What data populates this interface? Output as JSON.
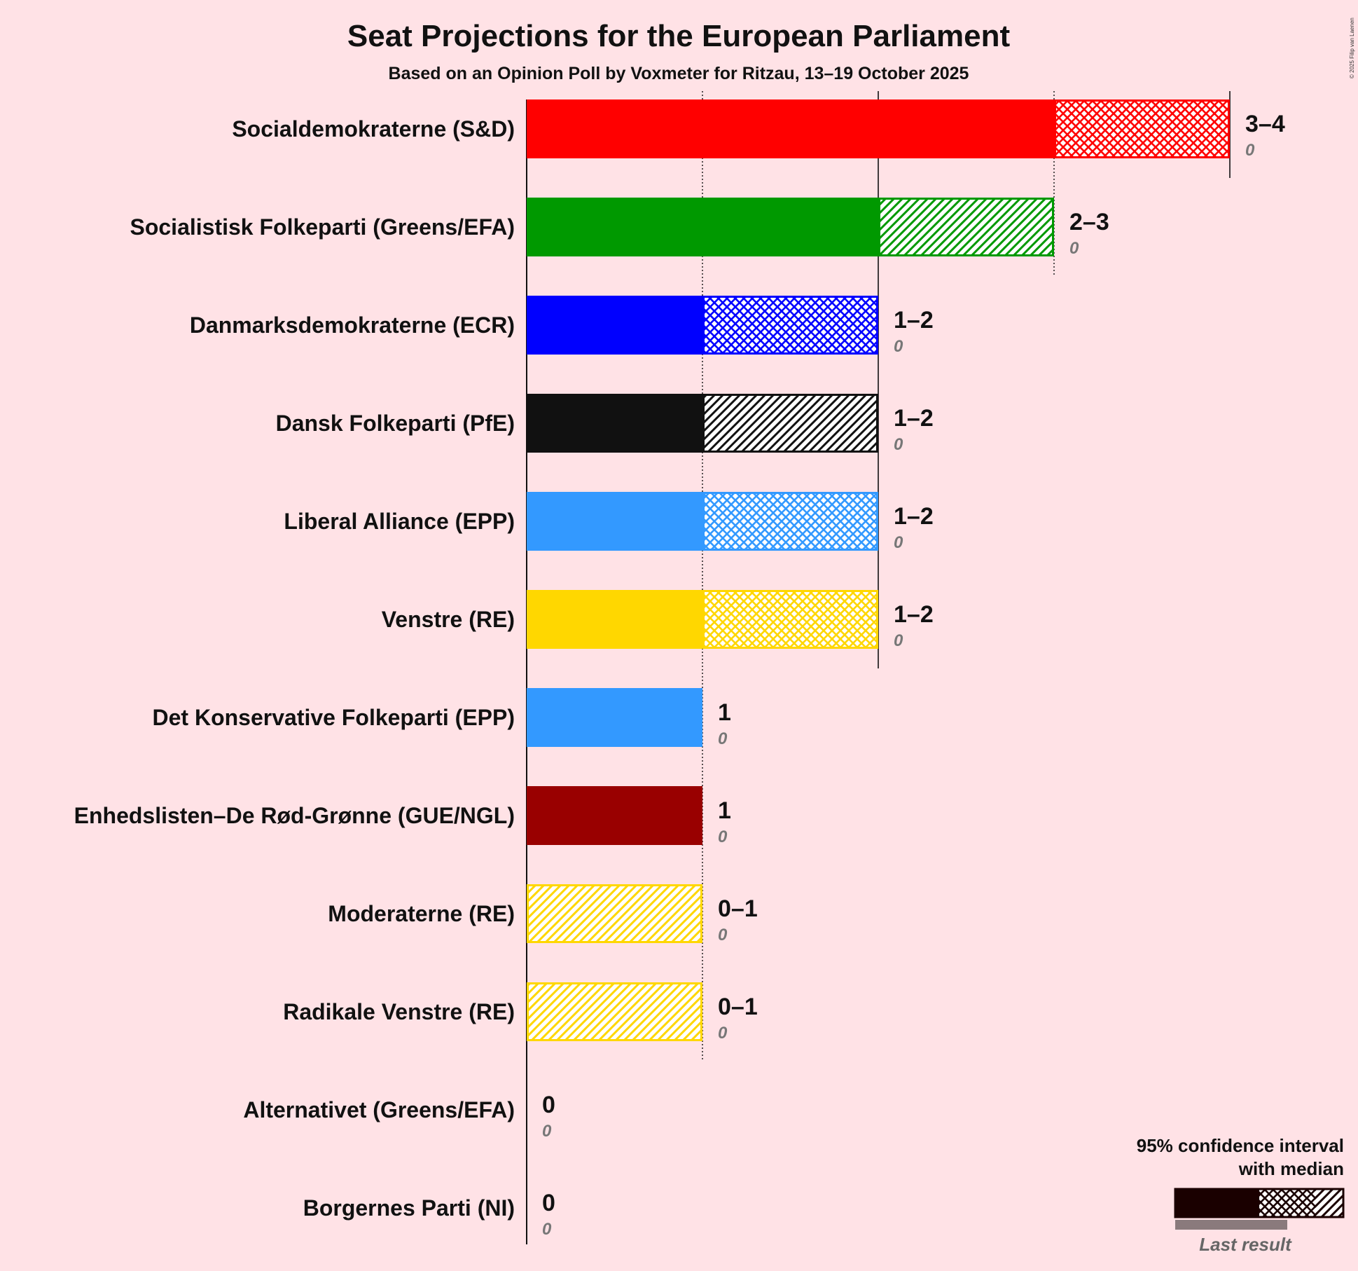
{
  "title": "Seat Projections for the European Parliament",
  "subtitle": "Based on an Opinion Poll by Voxmeter for Ritzau, 13–19 October 2025",
  "copyright": "© 2025 Filip van Laenen",
  "legend": {
    "line1": "95% confidence interval",
    "line2": "with median",
    "last_result": "Last result"
  },
  "chart_data": {
    "type": "bar",
    "orientation": "horizontal",
    "title": "Seat Projections for the European Parliament",
    "subtitle": "Based on an Opinion Poll by Voxmeter for Ritzau, 13–19 October 2025",
    "xlim": [
      0,
      4
    ],
    "categories": [
      "Socialdemokraterne (S&D)",
      "Socialistisk Folkeparti (Greens/EFA)",
      "Danmarksdemokraterne (ECR)",
      "Dansk Folkeparti (PfE)",
      "Liberal Alliance (EPP)",
      "Venstre (RE)",
      "Det Konservative Folkeparti (EPP)",
      "Enhedslisten–De Rød-Grønne (GUE/NGL)",
      "Moderaterne (RE)",
      "Radikale Venstre (RE)",
      "Alternativet (Greens/EFA)",
      "Borgernes Parti (NI)"
    ],
    "parties": [
      {
        "name": "Socialdemokraterne (S&D)",
        "low": 3,
        "median": 3,
        "high": 4,
        "range_label": "3–4",
        "last_result": 0,
        "last_label": "0",
        "color": "#ff0000",
        "inner_pattern": "cross",
        "outer_pattern": "cross"
      },
      {
        "name": "Socialistisk Folkeparti (Greens/EFA)",
        "low": 2,
        "median": 2,
        "high": 3,
        "range_label": "2–3",
        "last_result": 0,
        "last_label": "0",
        "color": "#009900",
        "inner_pattern": "diag",
        "outer_pattern": "diag"
      },
      {
        "name": "Danmarksdemokraterne (ECR)",
        "low": 1,
        "median": 1,
        "high": 2,
        "range_label": "1–2",
        "last_result": 0,
        "last_label": "0",
        "color": "#0000ff",
        "inner_pattern": "cross",
        "outer_pattern": "cross"
      },
      {
        "name": "Dansk Folkeparti (PfE)",
        "low": 1,
        "median": 1,
        "high": 2,
        "range_label": "1–2",
        "last_result": 0,
        "last_label": "0",
        "color": "#111111",
        "inner_pattern": "diag",
        "outer_pattern": "diag"
      },
      {
        "name": "Liberal Alliance (EPP)",
        "low": 1,
        "median": 1,
        "high": 2,
        "range_label": "1–2",
        "last_result": 0,
        "last_label": "0",
        "color": "#3399ff",
        "inner_pattern": "cross",
        "outer_pattern": "cross"
      },
      {
        "name": "Venstre (RE)",
        "low": 1,
        "median": 1,
        "high": 2,
        "range_label": "1–2",
        "last_result": 0,
        "last_label": "0",
        "color": "#ffd700",
        "inner_pattern": "cross",
        "outer_pattern": "cross"
      },
      {
        "name": "Det Konservative Folkeparti (EPP)",
        "low": 1,
        "median": 1,
        "high": 1,
        "range_label": "1",
        "last_result": 0,
        "last_label": "0",
        "color": "#3399ff",
        "inner_pattern": "none",
        "outer_pattern": "none"
      },
      {
        "name": "Enhedslisten–De Rød-Grønne (GUE/NGL)",
        "low": 1,
        "median": 1,
        "high": 1,
        "range_label": "1",
        "last_result": 0,
        "last_label": "0",
        "color": "#990000",
        "inner_pattern": "none",
        "outer_pattern": "none"
      },
      {
        "name": "Moderaterne (RE)",
        "low": 0,
        "median": 0,
        "high": 1,
        "range_label": "0–1",
        "last_result": 0,
        "last_label": "0",
        "color": "#ffd700",
        "inner_pattern": "diag",
        "outer_pattern": "diag"
      },
      {
        "name": "Radikale Venstre (RE)",
        "low": 0,
        "median": 0,
        "high": 1,
        "range_label": "0–1",
        "last_result": 0,
        "last_label": "0",
        "color": "#ffd700",
        "inner_pattern": "diag",
        "outer_pattern": "diag"
      },
      {
        "name": "Alternativet (Greens/EFA)",
        "low": 0,
        "median": 0,
        "high": 0,
        "range_label": "0",
        "last_result": 0,
        "last_label": "0",
        "color": "#009900",
        "inner_pattern": "none",
        "outer_pattern": "none"
      },
      {
        "name": "Borgernes Parti (NI)",
        "low": 0,
        "median": 0,
        "high": 0,
        "range_label": "0",
        "last_result": 0,
        "last_label": "0",
        "color": "#888888",
        "inner_pattern": "none",
        "outer_pattern": "none"
      }
    ]
  }
}
